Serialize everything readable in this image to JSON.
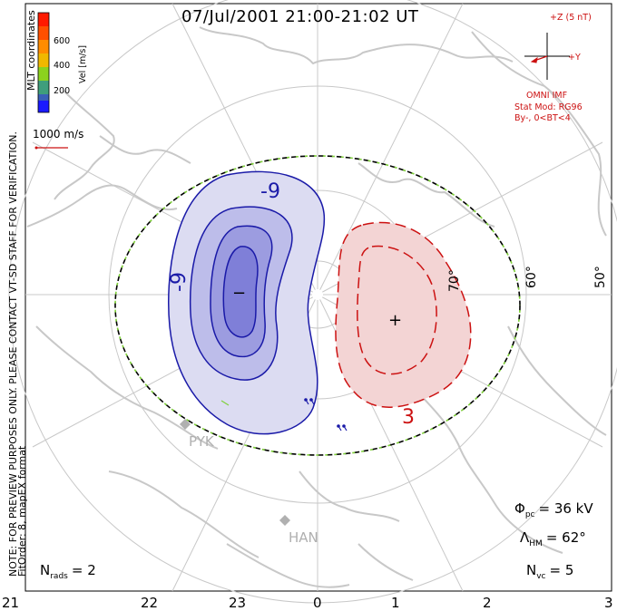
{
  "title": "07/Jul/2001 21:00-21:02 UT",
  "coordinates_label": "MLT coordinates",
  "velocity_scale": {
    "unit": "Vel [m/s]",
    "ticks": [
      "600",
      "400",
      "200"
    ],
    "colors": [
      "#ff1a00",
      "#ff8c00",
      "#f0b800",
      "#8cd21e",
      "#3f9e7c",
      "#3a5fb8",
      "#1a1aff"
    ]
  },
  "reference_vector_label": "1000 m/s",
  "side_notes": {
    "verification": "NOTE: FOR PREVIEW PURPOSES ONLY. PLEASE CONTACT VT-SD STAFF FOR VERIFICATION.",
    "fit_order": "FitOrder: 8, mapEX format"
  },
  "imf": {
    "z_label": "+Z (5 nT)",
    "y_label": "+Y",
    "source": "OMNI IMF",
    "model": "Stat Mod: RG96",
    "condition": "By-, 0<BT<4"
  },
  "latitude_labels": [
    "70°",
    "60°",
    "50°"
  ],
  "contour_labels": {
    "negative": "-9",
    "positive": "3"
  },
  "extremum_markers": {
    "min": "−",
    "max": "+"
  },
  "stations": [
    "PYK",
    "HAN"
  ],
  "stats": {
    "phi_pc_symbol": "Φ",
    "phi_pc_sub": "pc",
    "phi_pc_value": "= 36 kV",
    "lambda_hm_symbol": "Λ",
    "lambda_hm_sub": "HM",
    "lambda_hm_value": "= 62°",
    "n_rads_symbol": "N",
    "n_rads_sub": "rads",
    "n_rads_value": "= 2",
    "n_vc_symbol": "N",
    "n_vc_sub": "vc",
    "n_vc_value": "= 5"
  },
  "mlt_axis_labels": [
    "21",
    "22",
    "23",
    "0",
    "1",
    "2",
    "3"
  ],
  "colors": {
    "negative_cell": "#1a1aa8",
    "positive_cell": "#cc1111",
    "hmb_dash": "#7fd03a",
    "coastline": "#c8c8c8",
    "grid": "#c8c8c8"
  }
}
